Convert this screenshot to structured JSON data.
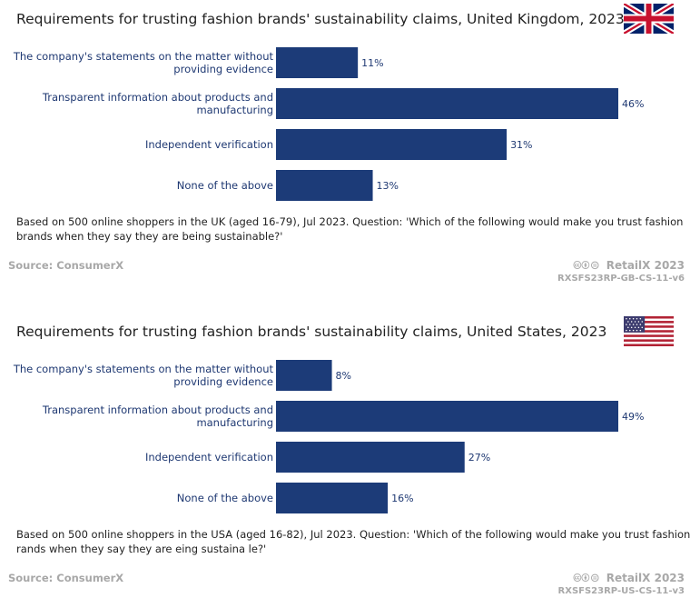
{
  "panels": [
    {
      "title": "Requirements for trusting fashion brands' sustainability claims, United Kingdom, 2023",
      "flag": "uk-flag",
      "note": "Based on 500 online shoppers in the UK (aged 16-79), Jul 2023. Question: 'Which of the following would make you trust fashion brands when they say they are being sustainable?'",
      "source": "Source: ConsumerX",
      "brand": "RetailX 2023",
      "license_icons": "cc-by-nd-icons",
      "code": "RXSFS23RP-GB-CS-11-v6"
    },
    {
      "title": "Requirements for trusting fashion brands' sustainability claims, United States, 2023",
      "flag": "us-flag",
      "note": "Based on 500 online shoppers in the USA (aged 16-82), Jul 2023. Question: 'Which of the following would make you trust fashion rands when they say they are eing sustaina le?'",
      "source": "Source: ConsumerX",
      "brand": "RetailX 2023",
      "license_icons": "cc-by-nd-icons",
      "code": "RXSFS23RP-US-CS-11-v3"
    }
  ],
  "chart_data": [
    {
      "type": "bar",
      "orientation": "horizontal",
      "title": "Requirements for trusting fashion brands' sustainability claims, United Kingdom, 2023",
      "categories": [
        [
          "The company's statements on the matter without",
          "providing evidence"
        ],
        [
          "Transparent information about products and",
          "manufacturing"
        ],
        [
          "Independent verification"
        ],
        [
          "None of the above"
        ]
      ],
      "values": [
        11,
        46,
        31,
        13
      ],
      "value_labels": [
        "11%",
        "46%",
        "31%",
        "13%"
      ],
      "unit": "%",
      "xlim": [
        0,
        46
      ]
    },
    {
      "type": "bar",
      "orientation": "horizontal",
      "title": "Requirements for trusting fashion brands' sustainability claims, United States, 2023",
      "categories": [
        [
          "The company's statements on the matter without",
          "providing evidence"
        ],
        [
          "Transparent information about products and",
          "manufacturing"
        ],
        [
          "Independent verification"
        ],
        [
          "None of the above"
        ]
      ],
      "values": [
        8,
        49,
        27,
        16
      ],
      "value_labels": [
        "8%",
        "49%",
        "27%",
        "16%"
      ],
      "unit": "%",
      "xlim": [
        0,
        49
      ]
    }
  ]
}
